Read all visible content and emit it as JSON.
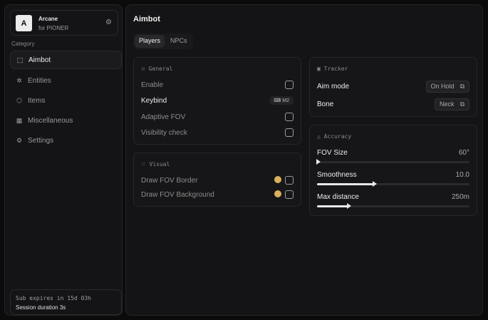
{
  "brand": {
    "logo_letter": "A",
    "name": "Arcane",
    "subtitle": "for PIONER"
  },
  "sidebar": {
    "category_label": "Category",
    "items": [
      {
        "label": "Aimbot",
        "icon": "crosshair-icon",
        "active": true
      },
      {
        "label": "Entities",
        "icon": "users-icon"
      },
      {
        "label": "Items",
        "icon": "box-icon"
      },
      {
        "label": "Miscellaneous",
        "icon": "grid-icon"
      },
      {
        "label": "Settings",
        "icon": "gear-icon"
      }
    ],
    "subscription": "Sub expires in 15d 03h",
    "session": "Session duration 3s"
  },
  "main": {
    "title": "Aimbot",
    "tabs": [
      {
        "label": "Players",
        "active": true
      },
      {
        "label": "NPCs"
      }
    ],
    "general": {
      "title": "General",
      "enable": "Enable",
      "keybind": "Keybind",
      "keybind_value": "M2",
      "adaptive_fov": "Adaptive FOV",
      "visibility_check": "Visibility check"
    },
    "visual": {
      "title": "Visual",
      "draw_fov_border": "Draw FOV Border",
      "draw_fov_background": "Draw FOV Background",
      "color": "#d8b15a"
    },
    "tracker": {
      "title": "Tracker",
      "aim_mode": "Aim mode",
      "aim_mode_value": "On Hold",
      "bone": "Bone",
      "bone_value": "Neck"
    },
    "accuracy": {
      "title": "Accuracy",
      "sliders": [
        {
          "label": "FOV Size",
          "value": "60°",
          "fraction": 0.0
        },
        {
          "label": "Smoothness",
          "value": "10.0",
          "fraction": 0.37
        },
        {
          "label": "Max distance",
          "value": "250m",
          "fraction": 0.2
        }
      ]
    }
  }
}
